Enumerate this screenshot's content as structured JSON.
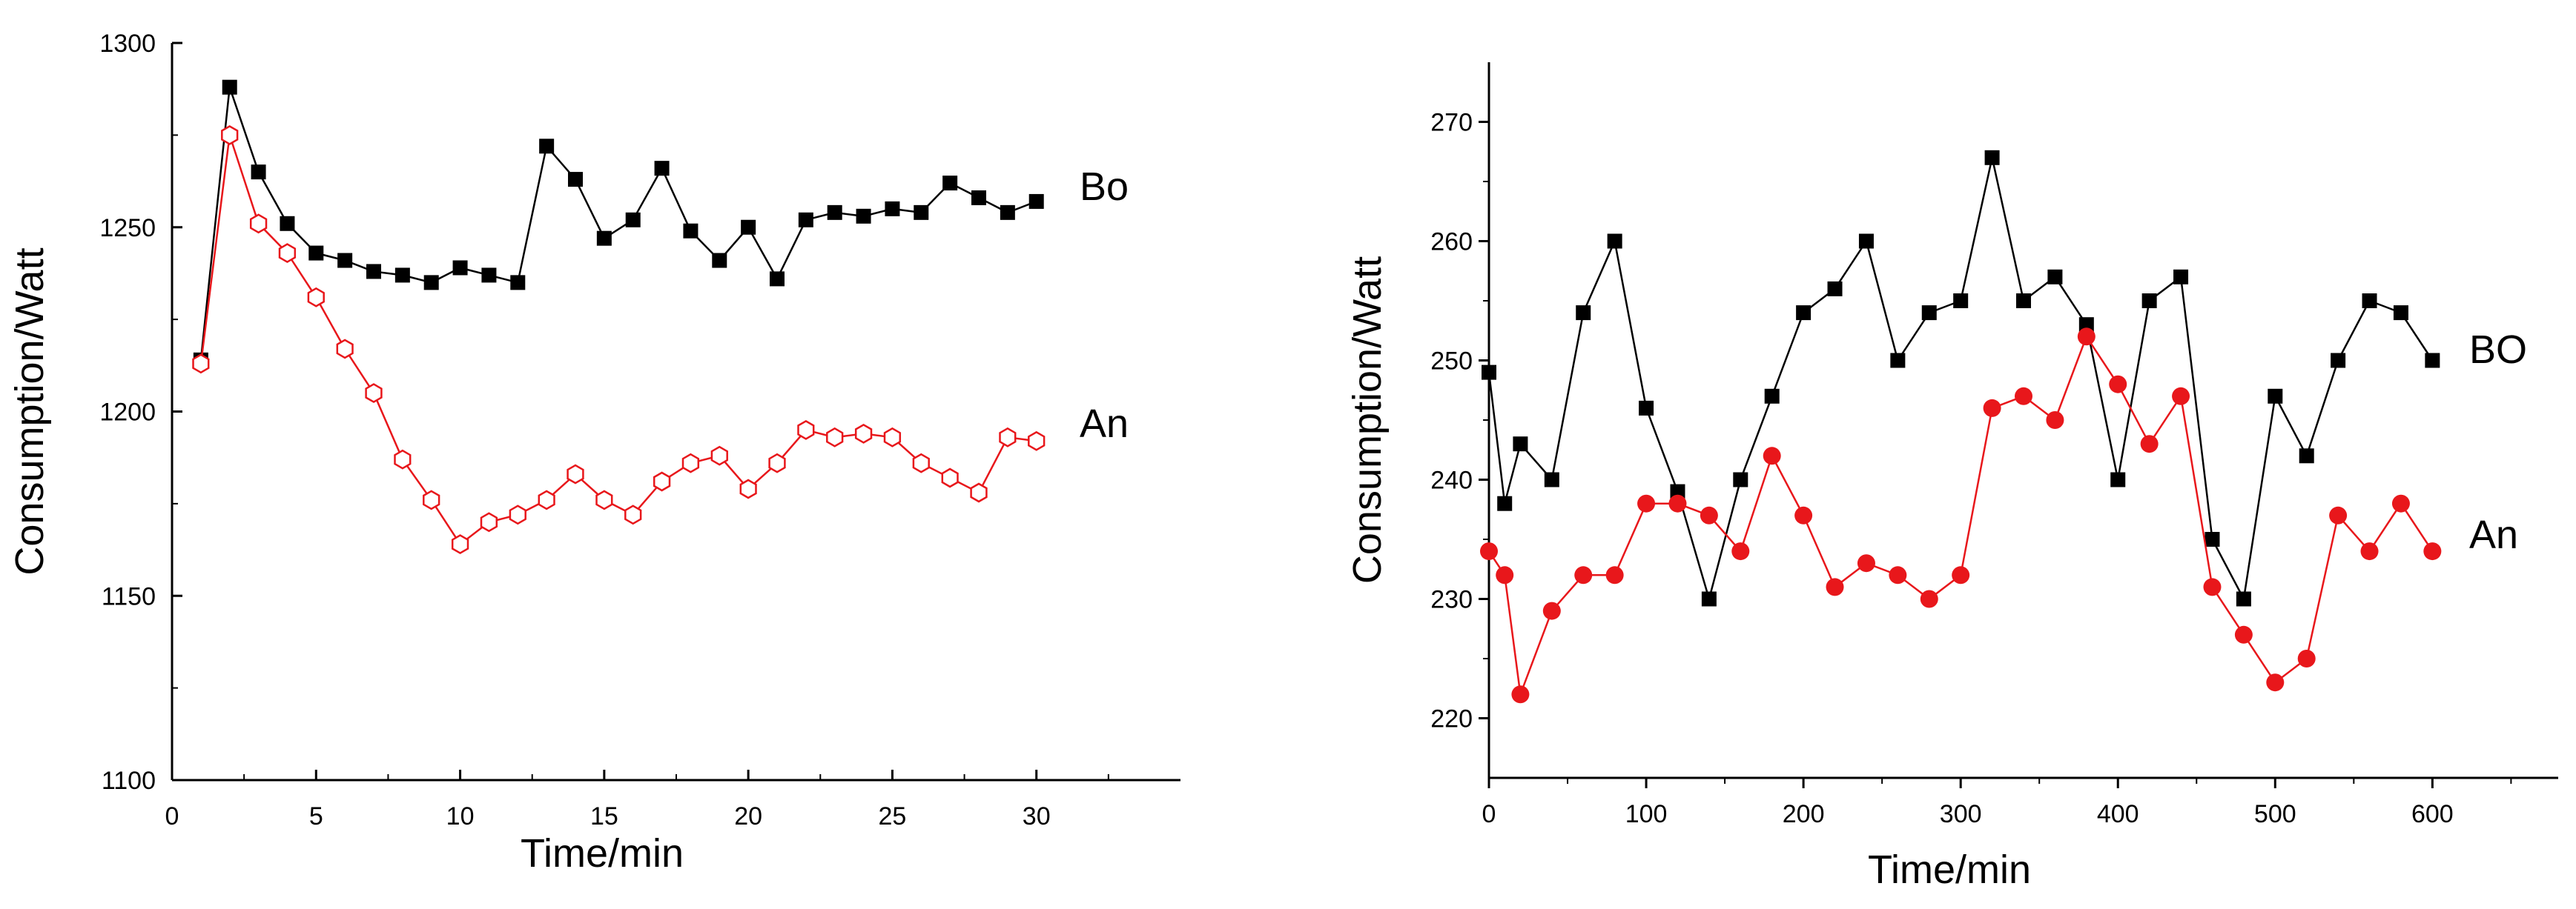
{
  "chart_data": [
    {
      "type": "line",
      "xlabel": "Time/min",
      "ylabel": "Consumption/Watt",
      "xlim": [
        0,
        35
      ],
      "ylim": [
        1100,
        1300
      ],
      "xticks": [
        0,
        5,
        10,
        15,
        20,
        25,
        30
      ],
      "yticks": [
        1100,
        1150,
        1200,
        1250,
        1300
      ],
      "grid": false,
      "x": [
        1,
        2,
        3,
        4,
        5,
        6,
        7,
        8,
        9,
        10,
        11,
        12,
        13,
        14,
        15,
        16,
        17,
        18,
        19,
        20,
        21,
        22,
        23,
        24,
        25,
        26,
        27,
        28,
        29,
        30
      ],
      "series": [
        {
          "name": "Bo",
          "color": "#000000",
          "marker": "square-filled",
          "values": [
            1214,
            1288,
            1265,
            1251,
            1243,
            1241,
            1238,
            1237,
            1235,
            1239,
            1237,
            1235,
            1272,
            1263,
            1247,
            1252,
            1266,
            1249,
            1241,
            1250,
            1236,
            1252,
            1254,
            1253,
            1255,
            1254,
            1262,
            1258,
            1254,
            1257
          ]
        },
        {
          "name": "An",
          "color": "#e8171b",
          "marker": "hexagon-open",
          "values": [
            1213,
            1275,
            1251,
            1243,
            1231,
            1217,
            1205,
            1187,
            1176,
            1164,
            1170,
            1172,
            1176,
            1183,
            1176,
            1172,
            1181,
            1186,
            1188,
            1179,
            1186,
            1195,
            1193,
            1194,
            1193,
            1186,
            1182,
            1178,
            1193,
            1192
          ]
        }
      ]
    },
    {
      "type": "line",
      "xlabel": "Time/min",
      "ylabel": "Consumption/Watt",
      "xlim": [
        0,
        680
      ],
      "ylim": [
        215,
        275
      ],
      "xticks": [
        0,
        100,
        200,
        300,
        400,
        500,
        600
      ],
      "yticks": [
        220,
        230,
        240,
        250,
        260,
        270
      ],
      "grid": false,
      "x": [
        0,
        10,
        20,
        40,
        60,
        80,
        100,
        120,
        140,
        160,
        180,
        200,
        220,
        240,
        260,
        280,
        300,
        320,
        340,
        360,
        380,
        400,
        420,
        440,
        460,
        480,
        500,
        520,
        540,
        560,
        580,
        600
      ],
      "series": [
        {
          "name": "BO",
          "color": "#000000",
          "marker": "square-filled",
          "values": [
            249,
            238,
            243,
            240,
            254,
            260,
            246,
            239,
            230,
            240,
            247,
            254,
            256,
            260,
            250,
            254,
            255,
            267,
            255,
            257,
            253,
            240,
            255,
            257,
            235,
            230,
            247,
            242,
            250,
            255,
            254,
            250
          ]
        },
        {
          "name": "An",
          "color": "#e8171b",
          "marker": "circle-filled",
          "values": [
            234,
            232,
            222,
            229,
            232,
            232,
            238,
            238,
            237,
            234,
            242,
            237,
            231,
            233,
            232,
            230,
            232,
            246,
            247,
            245,
            252,
            248,
            243,
            247,
            231,
            227,
            223,
            225,
            237,
            234,
            238,
            234
          ]
        }
      ]
    }
  ]
}
